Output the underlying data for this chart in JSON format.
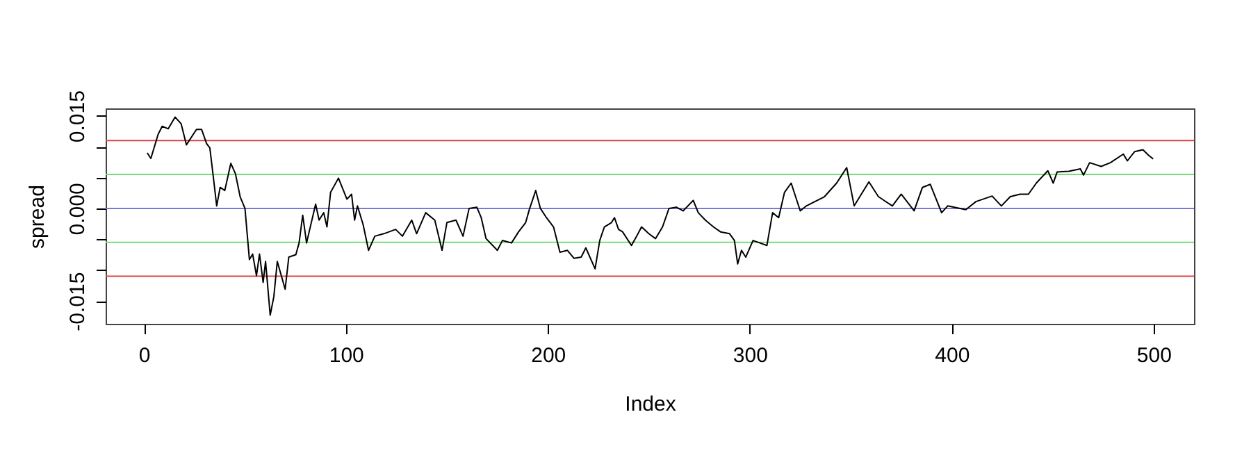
{
  "chart_data": {
    "type": "line",
    "xlabel": "Index",
    "ylabel": "spread",
    "xlim": [
      -19,
      520
    ],
    "ylim": [
      -0.0187,
      0.0162
    ],
    "xticks": [
      0,
      100,
      200,
      300,
      400,
      500
    ],
    "yticks": [
      {
        "value": -0.015,
        "label": "-0.015"
      },
      {
        "value": -0.01,
        "label": null
      },
      {
        "value": -0.005,
        "label": null
      },
      {
        "value": 0,
        "label": "0.000"
      },
      {
        "value": 0.005,
        "label": null
      },
      {
        "value": 0.01,
        "label": null
      },
      {
        "value": 0.015,
        "label": "0.015"
      }
    ],
    "grid": false,
    "ref_lines": [
      {
        "axis": "y",
        "value": 0.011,
        "color": "#dd4444"
      },
      {
        "axis": "y",
        "value": 0.0055,
        "color": "#77dd77"
      },
      {
        "axis": "y",
        "value": 0,
        "color": "#7777dd"
      },
      {
        "axis": "y",
        "value": -0.0055,
        "color": "#77dd77"
      },
      {
        "axis": "y",
        "value": -0.011,
        "color": "#dd4444"
      }
    ],
    "series": [
      {
        "color": "#000000",
        "x": [
          1.6,
          3.4,
          7,
          9,
          12,
          15.4,
          18.4,
          21,
          26,
          28.5,
          31,
          32.6,
          34,
          36,
          37.7,
          40,
          43,
          45.3,
          47.6,
          50,
          52.2,
          53.8,
          55.7,
          57.2,
          59,
          60.2,
          62.5,
          64.3,
          66,
          69.9,
          71.7,
          75.2,
          76.8,
          78.6,
          80.5,
          85,
          86.7,
          89,
          90.6,
          92.4,
          96.3,
          100.5,
          102.8,
          104.3,
          105.7,
          108.5,
          111.2,
          114.3,
          118.8,
          124.6,
          128,
          132.6,
          135,
          139.5,
          144,
          147.6,
          150,
          154.5,
          158,
          161,
          164.8,
          167,
          169.4,
          175,
          177.5,
          182,
          185.5,
          189,
          191,
          194,
          196.3,
          199.3,
          202.8,
          206,
          209.7,
          213,
          216.5,
          218.8,
          223.4,
          225.7,
          228,
          231.5,
          233,
          235,
          237,
          241.4,
          244,
          246.4,
          250,
          253.3,
          256.8,
          260,
          263.6,
          267,
          272,
          274.5,
          278,
          282,
          285.5,
          290,
          292.4,
          294,
          295.9,
          298,
          301.6,
          305,
          308.5,
          311.3,
          314.3,
          317.2,
          320.5,
          325,
          328,
          337,
          343,
          348,
          351.7,
          359,
          363.7,
          370.6,
          375,
          381.4,
          385.5,
          389.4,
          395,
          398,
          407,
          412,
          420,
          424.6,
          429,
          433.8,
          438,
          441.9,
          447.6,
          450.3,
          452.2,
          458,
          463.7,
          465.3,
          468.3,
          474,
          478.6,
          485,
          487,
          490.6,
          494.7,
          497.5,
          499.8
        ],
        "values": [
          0.009,
          0.0081,
          0.012,
          0.0133,
          0.0129,
          0.0148,
          0.0137,
          0.0103,
          0.0128,
          0.0128,
          0.0105,
          0.0098,
          0.006,
          0.0004,
          0.0034,
          0.0029,
          0.0073,
          0.0056,
          0.0019,
          0.0,
          -0.0083,
          -0.0074,
          -0.0109,
          -0.0074,
          -0.012,
          -0.0086,
          -0.0173,
          -0.0143,
          -0.0086,
          -0.0131,
          -0.0079,
          -0.0075,
          -0.0056,
          -0.0011,
          -0.0056,
          0.0007,
          -0.0019,
          -0.0007,
          -0.003,
          0.0026,
          0.0049,
          0.0015,
          0.0023,
          -0.0019,
          0.0004,
          -0.0026,
          -0.0068,
          -0.0045,
          -0.0041,
          -0.0034,
          -0.0045,
          -0.0019,
          -0.0041,
          -0.0007,
          -0.0019,
          -0.0068,
          -0.0023,
          -0.0019,
          -0.0045,
          0.0,
          0.0002,
          -0.0015,
          -0.0049,
          -0.0068,
          -0.0052,
          -0.0056,
          -0.0038,
          -0.0023,
          0.0,
          0.0029,
          0.0,
          -0.0015,
          -0.003,
          -0.0071,
          -0.0068,
          -0.0081,
          -0.0079,
          -0.0064,
          -0.0098,
          -0.0052,
          -0.003,
          -0.0023,
          -0.0015,
          -0.0034,
          -0.0038,
          -0.006,
          -0.0045,
          -0.003,
          -0.0041,
          -0.0049,
          -0.003,
          0.0,
          0.0002,
          -0.0004,
          0.0013,
          -0.0007,
          -0.0019,
          -0.003,
          -0.0038,
          -0.0041,
          -0.0052,
          -0.009,
          -0.0068,
          -0.0079,
          -0.0052,
          -0.0056,
          -0.006,
          -0.0007,
          -0.0015,
          0.0026,
          0.0041,
          -0.0004,
          0.0004,
          0.0019,
          0.0041,
          0.0066,
          0.0004,
          0.0043,
          0.0019,
          0.0004,
          0.0023,
          -0.0004,
          0.0034,
          0.0039,
          -0.0007,
          0.0004,
          -0.0002,
          0.0011,
          0.002,
          0.0004,
          0.0019,
          0.0023,
          0.0023,
          0.0041,
          0.0061,
          0.0041,
          0.0059,
          0.006,
          0.0064,
          0.0054,
          0.0074,
          0.0068,
          0.0074,
          0.0088,
          0.0077,
          0.0092,
          0.0095,
          0.0086,
          0.008
        ]
      }
    ]
  }
}
